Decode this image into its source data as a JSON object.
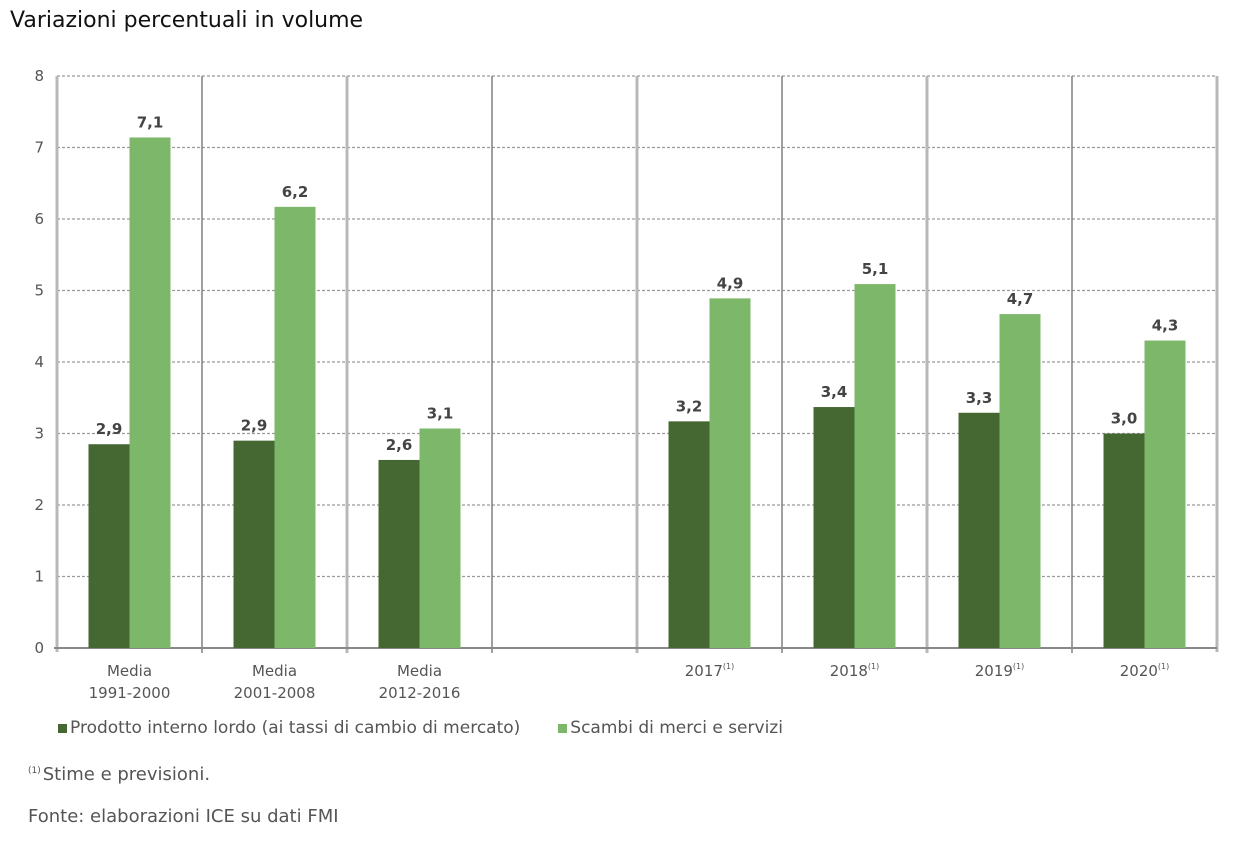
{
  "title": "Variazioni percentuali in volume",
  "chart_data": {
    "type": "bar",
    "title": "Variazioni percentuali in volume",
    "xlabel": "",
    "ylabel": "",
    "ylim": [
      0,
      8
    ],
    "yticks": [
      "0",
      "1",
      "2",
      "3",
      "4",
      "5",
      "6",
      "7",
      "8"
    ],
    "grid": true,
    "legend_position": "bottom-left",
    "categories": [
      {
        "line1": "Media",
        "line2": "1991-2000",
        "sup": ""
      },
      {
        "line1": "Media",
        "line2": "2001-2008",
        "sup": ""
      },
      {
        "line1": "Media",
        "line2": "2012-2016",
        "sup": ""
      },
      {
        "line1": "",
        "line2": "",
        "sup": ""
      },
      {
        "line1": "2017",
        "line2": "",
        "sup": "(1)"
      },
      {
        "line1": "2018",
        "line2": "",
        "sup": "(1)"
      },
      {
        "line1": "2019",
        "line2": "",
        "sup": "(1)"
      },
      {
        "line1": "2020",
        "line2": "",
        "sup": "(1)"
      }
    ],
    "series": [
      {
        "name": "Prodotto interno lordo (ai tassi di cambio di mercato)",
        "color": "#456732",
        "values": [
          2.85,
          2.9,
          2.63,
          null,
          3.17,
          3.37,
          3.29,
          3.0
        ],
        "labels": [
          "2,9",
          "2,9",
          "2,6",
          "",
          "3,2",
          "3,4",
          "3,3",
          "3,0"
        ]
      },
      {
        "name": "Scambi di merci e servizi",
        "color": "#7db86a",
        "values": [
          7.14,
          6.17,
          3.07,
          null,
          4.89,
          5.09,
          4.67,
          4.3
        ],
        "labels": [
          "7,1",
          "6,2",
          "3,1",
          "",
          "4,9",
          "5,1",
          "4,7",
          "4,3"
        ]
      }
    ]
  },
  "legend": [
    {
      "label": "Prodotto interno lordo (ai tassi di cambio di mercato)",
      "color": "#456732"
    },
    {
      "label": "Scambi di merci e servizi",
      "color": "#7db86a"
    }
  ],
  "footnote": {
    "marker": "(1)",
    "text": "Stime e previsioni."
  },
  "source": "Fonte: elaborazioni ICE su dati FMI"
}
